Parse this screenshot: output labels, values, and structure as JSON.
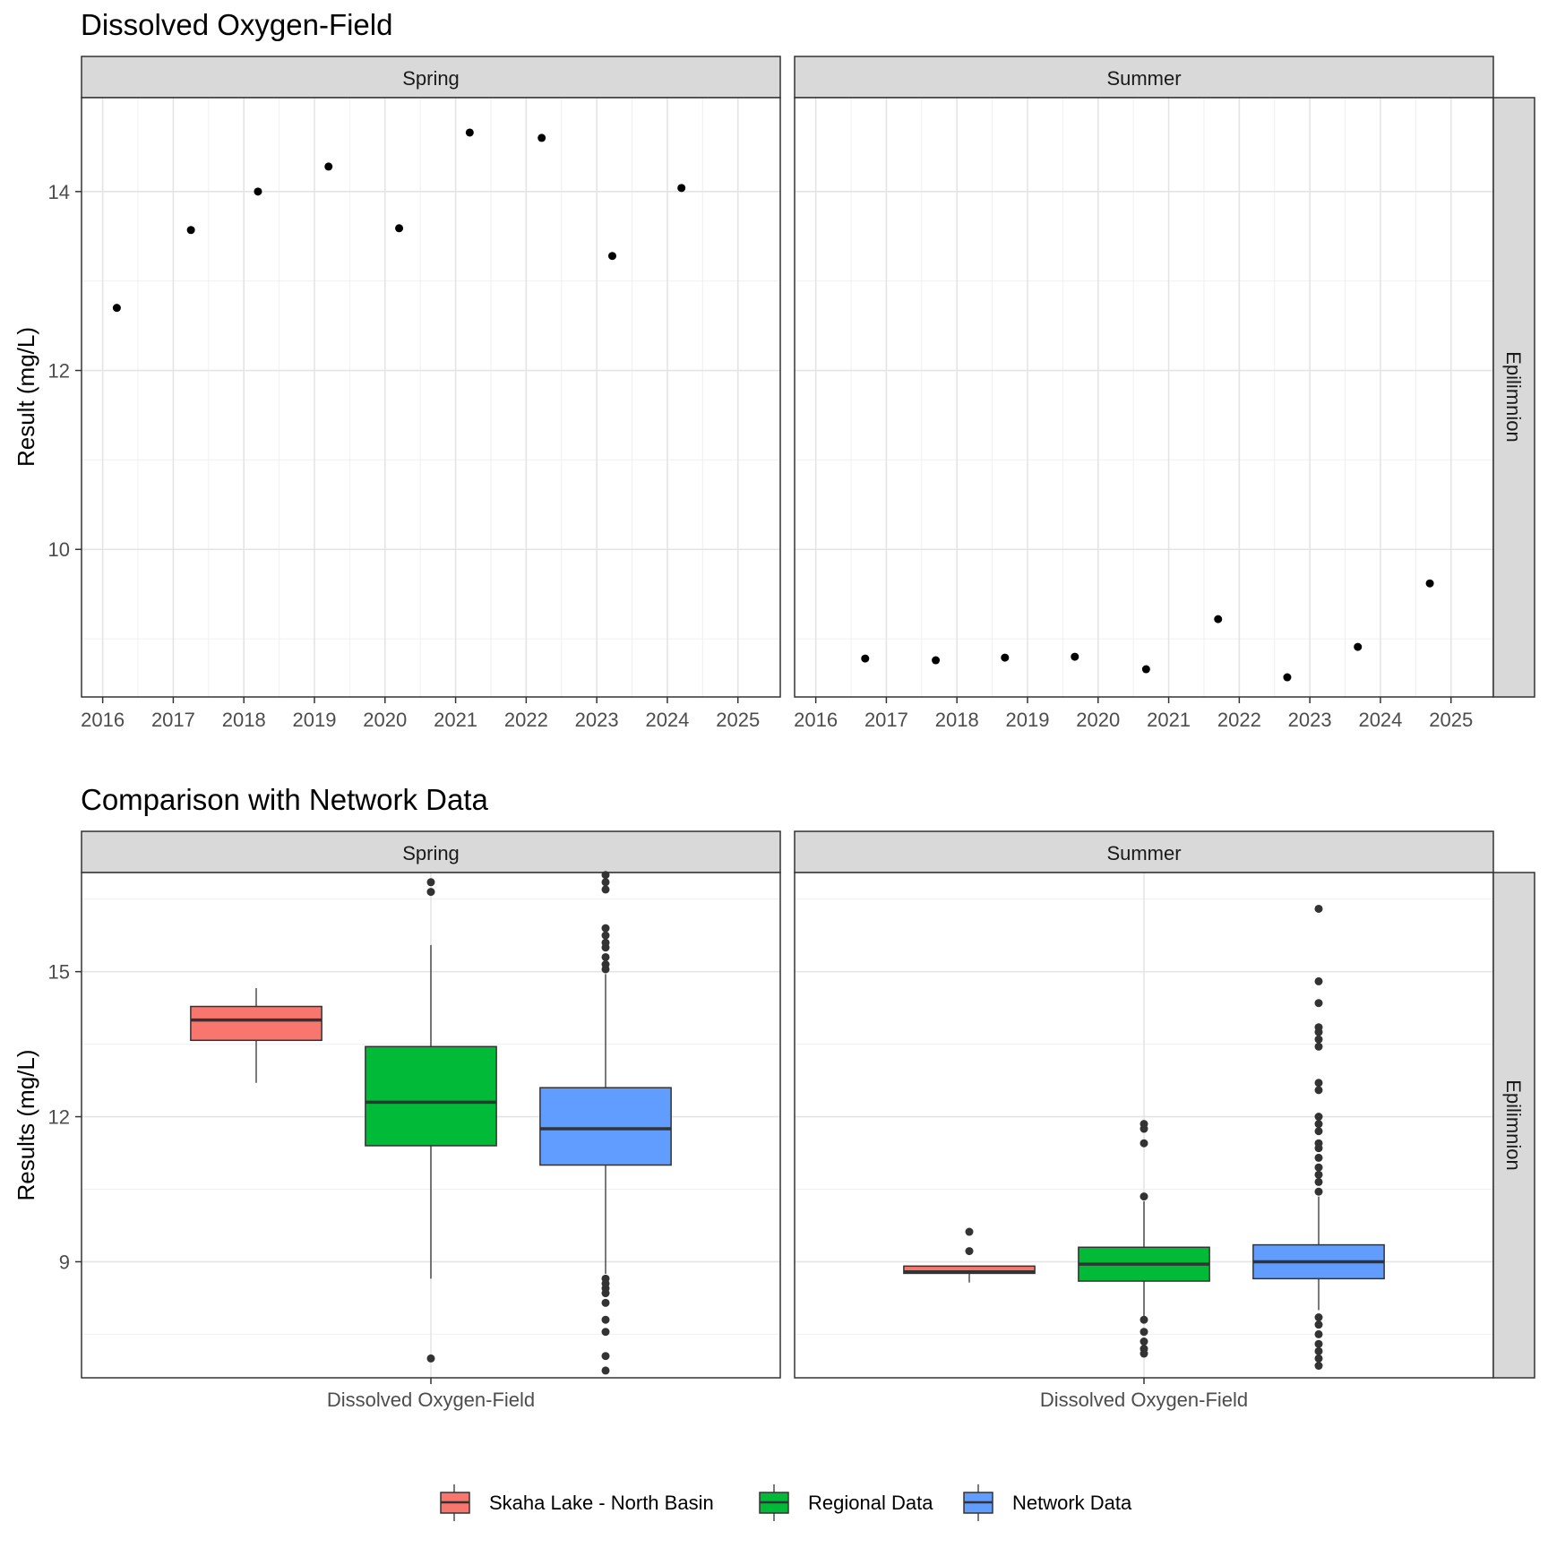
{
  "chart_data": [
    {
      "type": "scatter",
      "title": "Dissolved Oxygen-Field",
      "ylabel": "Result (mg/L)",
      "xlabel": "",
      "xlim": [
        2015.7,
        2025.6
      ],
      "ylim": [
        8.35,
        15.05
      ],
      "x_ticks": [
        2016,
        2017,
        2018,
        2019,
        2020,
        2021,
        2022,
        2023,
        2024,
        2025
      ],
      "x_tick_labels": [
        "2016",
        "2017",
        "2018",
        "2019",
        "2020",
        "2021",
        "2022",
        "2023",
        "2024",
        "2025"
      ],
      "y_ticks": [
        10,
        12,
        14
      ],
      "y_tick_labels": [
        "10",
        "12",
        "14"
      ],
      "y_minor": [
        9,
        11,
        13
      ],
      "row_strip": "Epilimnion",
      "panels": [
        {
          "strip": "Spring",
          "points": [
            {
              "x": 2016.2,
              "y": 12.7
            },
            {
              "x": 2017.25,
              "y": 13.57
            },
            {
              "x": 2018.2,
              "y": 14.0
            },
            {
              "x": 2019.2,
              "y": 14.28
            },
            {
              "x": 2020.2,
              "y": 13.59
            },
            {
              "x": 2021.2,
              "y": 14.66
            },
            {
              "x": 2022.22,
              "y": 14.6
            },
            {
              "x": 2023.22,
              "y": 13.28
            },
            {
              "x": 2024.2,
              "y": 14.04
            }
          ]
        },
        {
          "strip": "Summer",
          "points": [
            {
              "x": 2016.7,
              "y": 8.78
            },
            {
              "x": 2017.7,
              "y": 8.76
            },
            {
              "x": 2018.68,
              "y": 8.79
            },
            {
              "x": 2019.67,
              "y": 8.8
            },
            {
              "x": 2020.68,
              "y": 8.66
            },
            {
              "x": 2021.7,
              "y": 9.22
            },
            {
              "x": 2022.68,
              "y": 8.57
            },
            {
              "x": 2023.68,
              "y": 8.91
            },
            {
              "x": 2024.7,
              "y": 9.62
            }
          ]
        }
      ]
    },
    {
      "type": "box",
      "title": "Comparison with Network Data",
      "ylabel": "Results (mg/L)",
      "x_category": "Dissolved Oxygen-Field",
      "ylim": [
        6.6,
        17.05
      ],
      "y_ticks": [
        9,
        12,
        15
      ],
      "y_tick_labels": [
        "9",
        "12",
        "15"
      ],
      "y_minor": [
        7.5,
        10.5,
        13.5,
        16.5
      ],
      "row_strip": "Epilimnion",
      "legend_position": "bottom",
      "series": [
        {
          "name": "Skaha Lake - North Basin",
          "color": "#F8766D"
        },
        {
          "name": "Regional Data",
          "color": "#00BA38"
        },
        {
          "name": "Network Data",
          "color": "#619CFF"
        }
      ],
      "panels": [
        {
          "strip": "Spring",
          "boxes": [
            {
              "series": "Skaha Lake - North Basin",
              "q1": 13.58,
              "median": 14.0,
              "q3": 14.28,
              "whisker_low": 12.7,
              "whisker_high": 14.66,
              "outliers": []
            },
            {
              "series": "Regional Data",
              "q1": 11.4,
              "median": 12.3,
              "q3": 13.45,
              "whisker_low": 8.65,
              "whisker_high": 15.55,
              "outliers": [
                7.0,
                16.65,
                16.85
              ]
            },
            {
              "series": "Network Data",
              "q1": 11.0,
              "median": 11.75,
              "q3": 12.6,
              "whisker_low": 8.75,
              "whisker_high": 14.95,
              "outliers": [
                6.75,
                7.05,
                7.55,
                7.8,
                8.15,
                8.35,
                8.45,
                8.55,
                8.65,
                15.05,
                15.15,
                15.3,
                15.5,
                15.6,
                15.75,
                15.9,
                16.7,
                16.85,
                17.0
              ]
            }
          ]
        },
        {
          "strip": "Summer",
          "boxes": [
            {
              "series": "Skaha Lake - North Basin",
              "q1": 8.76,
              "median": 8.79,
              "q3": 8.91,
              "whisker_low": 8.57,
              "whisker_high": 8.91,
              "outliers": [
                9.22,
                9.62
              ]
            },
            {
              "series": "Regional Data",
              "q1": 8.6,
              "median": 8.95,
              "q3": 9.3,
              "whisker_low": 7.85,
              "whisker_high": 10.25,
              "outliers": [
                7.1,
                7.2,
                7.35,
                7.55,
                7.8,
                10.35,
                11.45,
                11.75,
                11.85
              ]
            },
            {
              "series": "Network Data",
              "q1": 8.65,
              "median": 9.0,
              "q3": 9.35,
              "whisker_low": 8.0,
              "whisker_high": 10.35,
              "outliers": [
                6.85,
                7.0,
                7.15,
                7.3,
                7.5,
                7.7,
                7.85,
                10.45,
                10.65,
                10.8,
                10.95,
                11.15,
                11.35,
                11.45,
                11.7,
                11.85,
                12.0,
                12.55,
                12.7,
                13.45,
                13.6,
                13.75,
                13.85,
                14.35,
                14.8,
                16.3
              ]
            }
          ]
        }
      ]
    }
  ]
}
